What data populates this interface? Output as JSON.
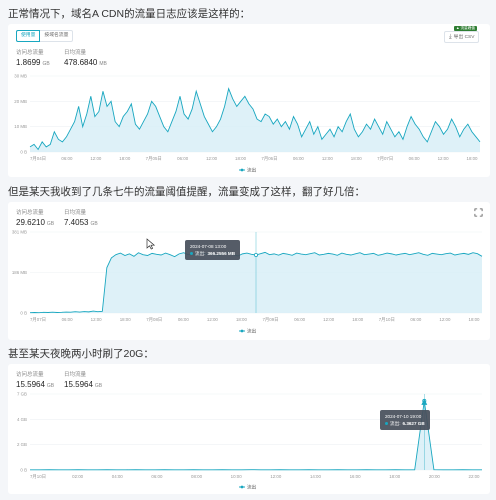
{
  "colors": {
    "series": "#19a7c0",
    "area": "#d6eef6",
    "grid": "#eef1f4",
    "tooltip_bg": "#464e5a"
  },
  "sections": [
    {
      "heading": "正常情况下，域名A CDN的流量日志应该是这样的：",
      "toggle": {
        "options": [
          "使用量",
          "按域名流量"
        ],
        "selected": 0
      },
      "export_label": "导出 CSV",
      "export_icon": "download-icon",
      "badge": "▲ 流量峰值",
      "metrics": [
        {
          "label": "访问总流量",
          "value": "1.8699",
          "unit": "GB"
        },
        {
          "label": "日均流量",
          "value": "478.6840",
          "unit": "MB"
        }
      ]
    },
    {
      "heading": "但是某天我收到了几条七牛的流量阈值提醒，流量变成了这样，翻了好几倍：",
      "expand_icon": "expand-icon",
      "metrics": [
        {
          "label": "访问总流量",
          "value": "29.6210",
          "unit": "GB"
        },
        {
          "label": "日均流量",
          "value": "7.4053",
          "unit": "GB"
        }
      ],
      "tooltip": {
        "time": "2024-07-08 13:00",
        "series": "流出",
        "value": "366.2556 MB"
      }
    },
    {
      "heading": "甚至某天夜晚两小时刷了20G：",
      "metrics": [
        {
          "label": "访问总流量",
          "value": "15.5964",
          "unit": "GB"
        },
        {
          "label": "日均流量",
          "value": "15.5964",
          "unit": "GB"
        }
      ],
      "tooltip": {
        "time": "2024-07-10 19:00",
        "series": "流出",
        "value": "6.3627 GB"
      }
    }
  ],
  "chart_data": [
    {
      "type": "area",
      "y_ticks": [
        "0 B",
        "10 MB",
        "20 MB",
        "30 MB"
      ],
      "ylim": [
        0,
        30
      ],
      "x_ticks": [
        "7月04日",
        "06:00",
        "12:00",
        "18:00",
        "7月05日",
        "06:00",
        "12:00",
        "18:00",
        "7月06日",
        "06:00",
        "12:00",
        "18:00",
        "7月07日",
        "06:00",
        "12:00",
        "18:00"
      ],
      "legend": "流出",
      "series": [
        {
          "name": "流出",
          "values": [
            2,
            3,
            1,
            4,
            2,
            3,
            8,
            5,
            4,
            6,
            9,
            12,
            18,
            10,
            15,
            22,
            14,
            16,
            24,
            18,
            20,
            12,
            10,
            14,
            16,
            19,
            11,
            9,
            12,
            15,
            20,
            18,
            14,
            10,
            8,
            12,
            16,
            22,
            15,
            13,
            17,
            24,
            19,
            14,
            11,
            8,
            10,
            13,
            18,
            25,
            21,
            18,
            20,
            22,
            19,
            17,
            13,
            12,
            15,
            14,
            11,
            13,
            10,
            12,
            9,
            14,
            11,
            6,
            9,
            12,
            7,
            10,
            5,
            7,
            9,
            6,
            10,
            8,
            12,
            15,
            9,
            6,
            8,
            11,
            9,
            13,
            10,
            7,
            12,
            9,
            6,
            8,
            5,
            10,
            14,
            11,
            9,
            6,
            4,
            8,
            12,
            10,
            7,
            9,
            13,
            10,
            6,
            9,
            11,
            8,
            6,
            4
          ]
        }
      ]
    },
    {
      "type": "area",
      "y_ticks": [
        "0 B",
        "186 MB",
        "381 MB"
      ],
      "ylim": [
        0,
        500
      ],
      "x_ticks": [
        "7月07日",
        "06:00",
        "12:00",
        "18:00",
        "7月08日",
        "06:00",
        "12:00",
        "18:00",
        "7月09日",
        "06:00",
        "12:00",
        "18:00",
        "7月10日",
        "06:00",
        "12:00",
        "18:00"
      ],
      "legend": "流出",
      "series": [
        {
          "name": "流出",
          "values": [
            2,
            3,
            2,
            4,
            3,
            5,
            3,
            4,
            6,
            5,
            8,
            6,
            9,
            7,
            12,
            8,
            10,
            280,
            340,
            360,
            370,
            355,
            365,
            350,
            372,
            360,
            355,
            368,
            362,
            358,
            370,
            360,
            348,
            365,
            372,
            360,
            366,
            358,
            375,
            362,
            366,
            360,
            355,
            368,
            372,
            360,
            352,
            365,
            370,
            362,
            358,
            366,
            374,
            360,
            365,
            357,
            368,
            363,
            356,
            370,
            364,
            360,
            366,
            372,
            358,
            362,
            368,
            364,
            356,
            370,
            362,
            358,
            365,
            372,
            360,
            364,
            368,
            356,
            362,
            370,
            365,
            358,
            364,
            368,
            360,
            366,
            372,
            362,
            356,
            368,
            364,
            360,
            366,
            370,
            358,
            364,
            368,
            362,
            372,
            366,
            350
          ]
        }
      ]
    },
    {
      "type": "area",
      "y_ticks": [
        "0 B",
        "2 GB",
        "4 GB",
        "7 GB"
      ],
      "ylim": [
        0,
        7
      ],
      "x_ticks": [
        "7月10日",
        "02:00",
        "04:00",
        "06:00",
        "08:00",
        "10:00",
        "12:00",
        "14:00",
        "16:00",
        "18:00",
        "20:00",
        "22:00"
      ],
      "legend": "流出",
      "series": [
        {
          "name": "流出",
          "values": [
            0.02,
            0.02,
            0.03,
            0.02,
            0.02,
            0.03,
            0.02,
            0.02,
            0.03,
            0.02,
            0.02,
            0.03,
            0.02,
            0.02,
            0.03,
            0.02,
            0.02,
            0.03,
            0.02,
            0.02,
            0.03,
            0.02,
            0.02,
            0.03,
            0.02,
            0.02,
            0.03,
            0.02,
            0.02,
            0.03,
            0.02,
            0.02,
            0.03,
            0.02,
            0.02,
            0.03,
            0.02,
            0.02,
            0.03,
            0.02,
            0.02,
            6.3627,
            0.03,
            0.02,
            0.02,
            0.03,
            0.02,
            0.02
          ]
        }
      ]
    }
  ]
}
